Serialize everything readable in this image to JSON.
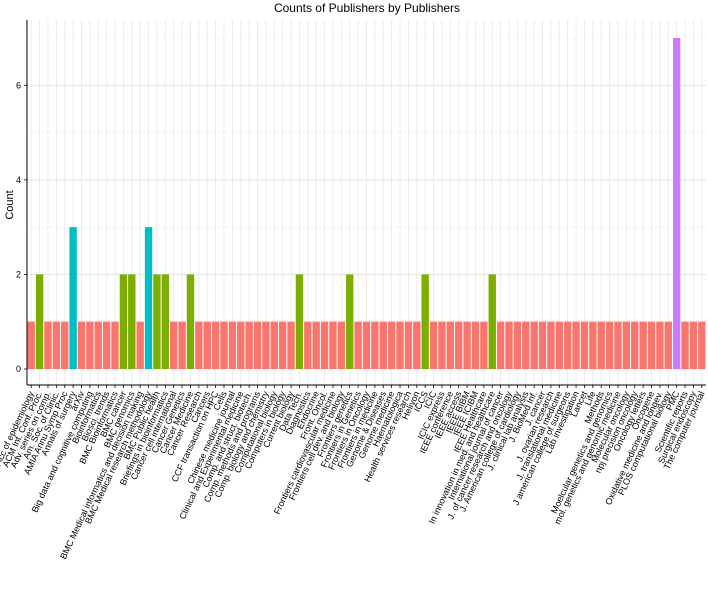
{
  "chart_data": {
    "type": "bar",
    "title": "Counts of Publishers by Publishers",
    "xlabel": "",
    "ylabel": "Count",
    "ylim": [
      0,
      7.3
    ],
    "yticks": [
      0,
      2,
      4,
      6
    ],
    "legend": "none",
    "colors": {
      "1": "#f8766d",
      "2": "#7cae00",
      "3": "#00bfc4",
      "7": "#c77cff"
    },
    "categories": [
      "Acc of epidemiology",
      "ACM Int. Conf. Proc.",
      "Adv. series on comp.",
      "Am. Soc. of Clinic.",
      "AMIA Annu Symp Proc",
      "Annals of surgery",
      "arXiv",
      "Big data and cognitive computing",
      "Bioinformatics",
      "Biosci. trends",
      "BMC Bioinformatics",
      "BMC cancer",
      "BMC genomics",
      "BMC Medical informatics and decision making",
      "BMC Medical research methodology",
      "BMC Public health",
      "Briefings in bioinformatics",
      "Cancer cell international",
      "Cancer Genetics",
      "Cancer Medicine",
      "Cancer Research",
      "Cancers",
      "CCF transaction on HPC",
      "Cells",
      "Chinese medicine journal",
      "Clinical and Experimental medicine",
      "Comp. and struct. biotech.",
      "Comp. methods and programs",
      "Comp. biology and chemistry",
      "Computational biology",
      "Computers in biology",
      "Current biology",
      "Data Tech.",
      "Diagnostics",
      "Endocrine",
      "Front. Oncol.",
      "Frontiers cardiovascular medicine",
      "Frontiers cell dev. and biology",
      "Frontiers genetics",
      "Frontiers in Genetics",
      "Frontiers in Oncology",
      "Frontiers in medicine",
      "Genome & Diseases",
      "Genome medicine",
      "Haematologica",
      "Health services research",
      "Heliyon",
      "ICCS",
      "ICIC",
      "ICIC express",
      "IEEE conference",
      "IEEE access",
      "IEEE BIBM",
      "IEEE ICIBM",
      "IEEE Healthcare",
      "In innovation in med. and healthcare",
      "International journal of cancer",
      "J. of cancer research and oncology",
      "J. American college of cardiology",
      "J. clinical lab analysis",
      "J. BioMed Inf.",
      "J. cancer",
      "J. ovarian research",
      "J. translational medicine",
      "J american college of surgeons",
      "Lab investigation",
      "Lancet",
      "Life",
      "Methods",
      "Moelcular genetics and genomics",
      "mol. genetics and genomic medicine",
      "Molecular oncology",
      "npj precision oncology",
      "Oncology letters",
      "Oncogene",
      "Oxidative medicine and longev.",
      "PLOS computational biology",
      "PMC",
      "Scientific reports",
      "Surgical endoscopy",
      "The computer journal"
    ],
    "values": [
      1,
      2,
      1,
      1,
      1,
      3,
      1,
      1,
      1,
      1,
      1,
      2,
      2,
      1,
      3,
      2,
      2,
      1,
      1,
      2,
      1,
      1,
      1,
      1,
      1,
      1,
      1,
      1,
      1,
      1,
      1,
      1,
      2,
      1,
      1,
      1,
      1,
      1,
      2,
      1,
      1,
      1,
      1,
      1,
      1,
      1,
      1,
      2,
      1,
      1,
      1,
      1,
      1,
      1,
      1,
      2,
      1,
      1,
      1,
      1,
      1,
      1,
      1,
      1,
      1,
      1,
      1,
      1,
      1,
      1,
      1,
      1,
      1,
      1,
      1,
      1,
      1,
      7,
      1,
      1,
      1
    ]
  }
}
